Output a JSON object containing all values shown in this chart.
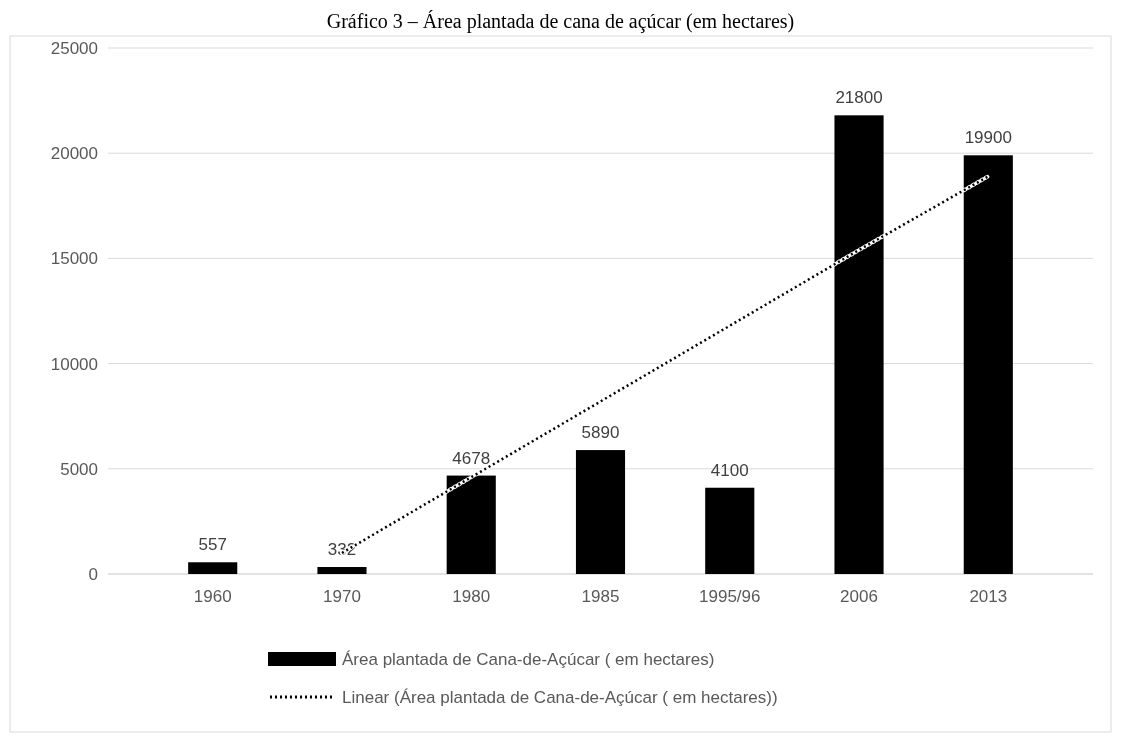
{
  "chart_data": {
    "type": "bar",
    "title": "Gráfico 3 – Área plantada de cana de açúcar (em hectares)",
    "categories": [
      "1960",
      "1970",
      "1980",
      "1985",
      "1995/96",
      "2006",
      "2013"
    ],
    "series": [
      {
        "name": "Área plantada de Cana-de-Açúcar ( em hectares)",
        "color": "#000000",
        "values": [
          557,
          332,
          4678,
          5890,
          4100,
          21800,
          19900
        ],
        "value_labels": [
          "557",
          "332",
          "4678",
          "5890",
          "4100",
          "21800",
          "19900"
        ]
      },
      {
        "type": "line",
        "name": "Linear (Área plantada de Cana-de-Açúcar ( em hectares))",
        "color": "#000000",
        "line_style": "dotted",
        "marker": "none",
        "values": [
          null,
          1000,
          4600,
          8200,
          11800,
          15400,
          18900
        ]
      }
    ],
    "ylim": [
      0,
      25000
    ],
    "yticks": [
      0,
      5000,
      10000,
      15000,
      20000,
      25000
    ],
    "grid": "y",
    "legend": "bottom"
  }
}
